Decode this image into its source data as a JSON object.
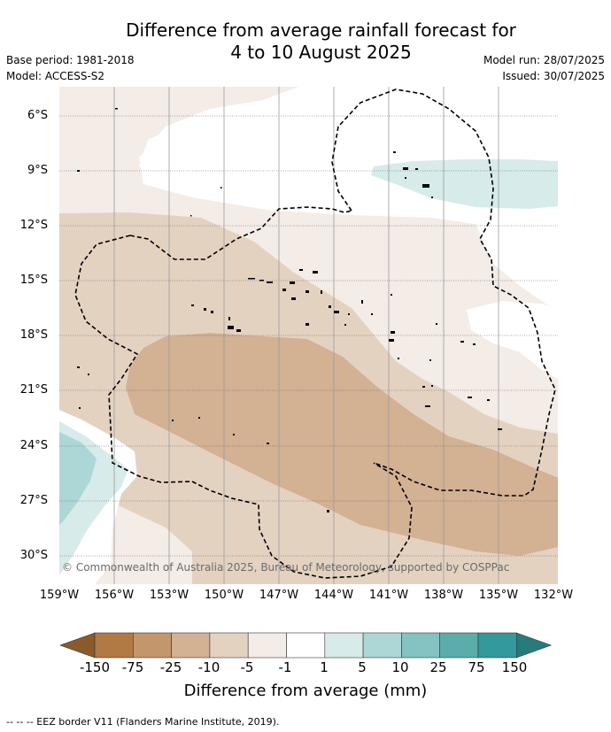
{
  "title": {
    "line1": "Difference from average rainfall forecast for",
    "line2": "4 to 10 August 2025"
  },
  "meta_left": {
    "base_period": "Base period: 1981-2018",
    "model": "Model: ACCESS-S2"
  },
  "meta_right": {
    "model_run": "Model run: 28/07/2025",
    "issued": "Issued: 30/07/2025"
  },
  "map": {
    "lat_labels": [
      "6°S",
      "9°S",
      "12°S",
      "15°S",
      "18°S",
      "21°S",
      "24°S",
      "27°S",
      "30°S"
    ],
    "lon_labels": [
      "159°W",
      "156°W",
      "153°W",
      "150°W",
      "147°W",
      "144°W",
      "141°W",
      "138°W",
      "135°W",
      "132°W"
    ],
    "copyright": "© Commonwealth of Australia 2025, Bureau of Meteorology, supported by COSPPac"
  },
  "colorbar": {
    "labels": [
      "-150",
      "-75",
      "-25",
      "-10",
      "-5",
      "-1",
      "1",
      "5",
      "10",
      "25",
      "75",
      "150"
    ],
    "colors": [
      "#8b5a2b",
      "#b07a45",
      "#c4966b",
      "#d3b193",
      "#e4d2c1",
      "#f4ece6",
      "#ffffff",
      "#d6ebea",
      "#acd7d6",
      "#83c3c2",
      "#5badab",
      "#34999a",
      "#277b7c"
    ],
    "title": "Difference from average (mm)"
  },
  "footer": "--  --  -- EEZ border V11 (Flanders Marine Institute, 2019)."
}
